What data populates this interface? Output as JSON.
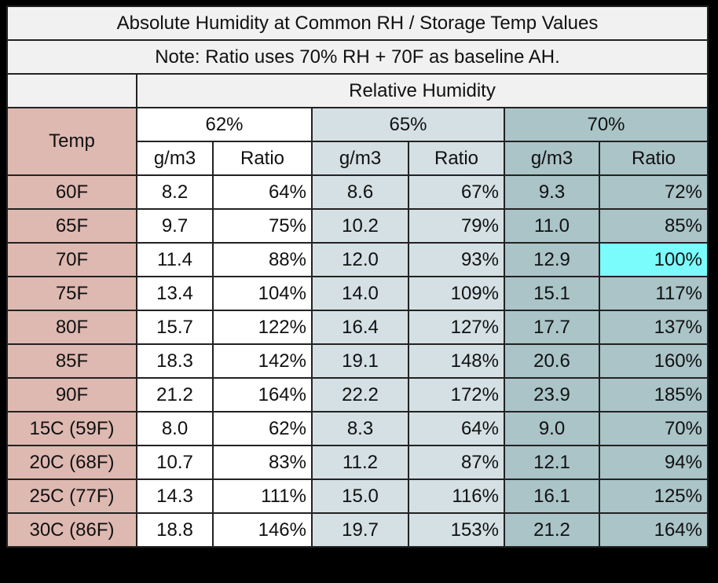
{
  "title": "Absolute Humidity at Common RH / Storage Temp Values",
  "note": "Note: Ratio uses 70% RH + 70F as baseline AH.",
  "rh_header": "Relative Humidity",
  "temp_header": "Temp",
  "groups": [
    "62%",
    "65%",
    "70%"
  ],
  "sub_headers": [
    "g/m3",
    "Ratio"
  ],
  "colors": {
    "temp": "#deb9b1",
    "rh62": "#ffffff",
    "rh65": "#d4e0e4",
    "rh70": "#aac4c8",
    "highlight": "#7afcfd"
  },
  "highlight_cell": {
    "row": "70F",
    "column": "70% Ratio"
  },
  "rows": [
    {
      "temp": "60F",
      "v": [
        "8.2",
        "64%",
        "8.6",
        "67%",
        "9.3",
        "72%"
      ]
    },
    {
      "temp": "65F",
      "v": [
        "9.7",
        "75%",
        "10.2",
        "79%",
        "11.0",
        "85%"
      ]
    },
    {
      "temp": "70F",
      "v": [
        "11.4",
        "88%",
        "12.0",
        "93%",
        "12.9",
        "100%"
      ]
    },
    {
      "temp": "75F",
      "v": [
        "13.4",
        "104%",
        "14.0",
        "109%",
        "15.1",
        "117%"
      ]
    },
    {
      "temp": "80F",
      "v": [
        "15.7",
        "122%",
        "16.4",
        "127%",
        "17.7",
        "137%"
      ]
    },
    {
      "temp": "85F",
      "v": [
        "18.3",
        "142%",
        "19.1",
        "148%",
        "20.6",
        "160%"
      ]
    },
    {
      "temp": "90F",
      "v": [
        "21.2",
        "164%",
        "22.2",
        "172%",
        "23.9",
        "185%"
      ]
    },
    {
      "temp": "15C (59F)",
      "v": [
        "8.0",
        "62%",
        "8.3",
        "64%",
        "9.0",
        "70%"
      ]
    },
    {
      "temp": "20C (68F)",
      "v": [
        "10.7",
        "83%",
        "11.2",
        "87%",
        "12.1",
        "94%"
      ]
    },
    {
      "temp": "25C (77F)",
      "v": [
        "14.3",
        "111%",
        "15.0",
        "116%",
        "16.1",
        "125%"
      ]
    },
    {
      "temp": "30C (86F)",
      "v": [
        "18.8",
        "146%",
        "19.7",
        "153%",
        "21.2",
        "164%"
      ]
    }
  ]
}
